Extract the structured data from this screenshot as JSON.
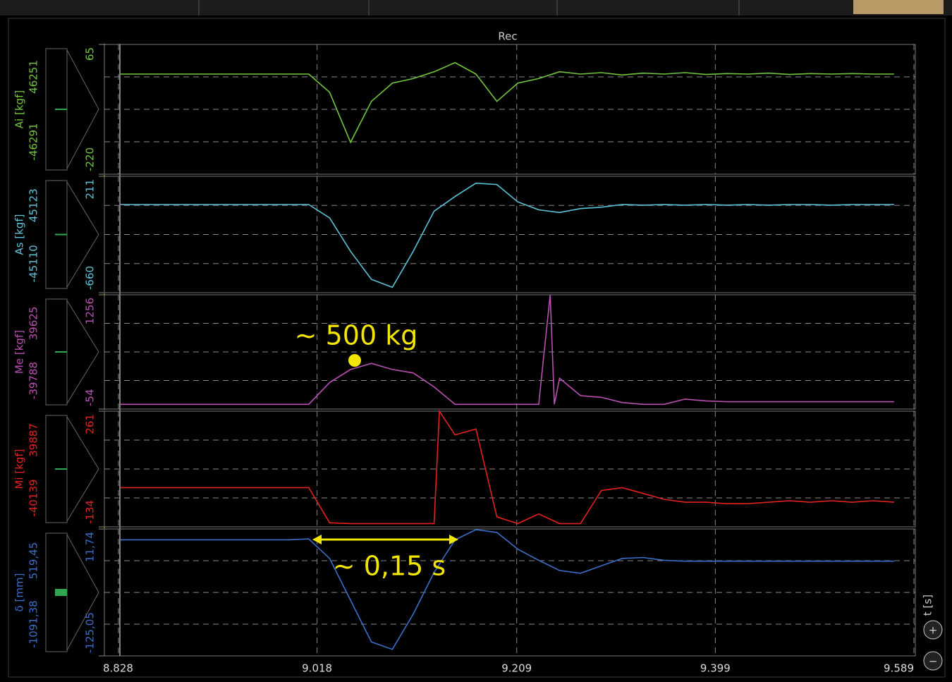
{
  "window": {
    "title": "Rec",
    "axis_label": "t [s]"
  },
  "chart_data": [
    {
      "type": "line",
      "ylabel": "Ai [kgf]",
      "side_labels": {
        "upper": "46251",
        "lower": "-46291"
      },
      "color": "#72c63c",
      "x": [
        8.83,
        8.85,
        8.87,
        8.89,
        8.91,
        8.93,
        8.95,
        8.97,
        8.99,
        9.01,
        9.03,
        9.05,
        9.07,
        9.09,
        9.11,
        9.13,
        9.15,
        9.17,
        9.19,
        9.21,
        9.23,
        9.25,
        9.27,
        9.29,
        9.31,
        9.33,
        9.35,
        9.37,
        9.39,
        9.41,
        9.43,
        9.45,
        9.47,
        9.49,
        9.51,
        9.53,
        9.55,
        9.57
      ],
      "values": [
        0,
        0,
        0,
        0,
        0,
        0,
        0,
        0,
        0,
        0,
        -40,
        -150,
        -60,
        -20,
        -10,
        5,
        25,
        0,
        -60,
        -20,
        -10,
        5,
        0,
        3,
        -2,
        2,
        0,
        3,
        -1,
        1,
        0,
        2,
        -1,
        1,
        0,
        1,
        0,
        0
      ],
      "xlim": [
        8.828,
        9.589
      ],
      "xticks": [
        8.828,
        9.018,
        9.209,
        9.399,
        9.589
      ],
      "ylim": [
        -220,
        65
      ],
      "yticks": [
        -220,
        65
      ]
    },
    {
      "type": "line",
      "ylabel": "As [kgf]",
      "side_labels": {
        "upper": "45123",
        "lower": "-45110"
      },
      "color": "#5cc3d8",
      "x": [
        8.83,
        8.85,
        8.87,
        8.89,
        8.91,
        8.93,
        8.95,
        8.97,
        8.99,
        9.01,
        9.03,
        9.05,
        9.07,
        9.09,
        9.11,
        9.13,
        9.15,
        9.17,
        9.19,
        9.21,
        9.23,
        9.25,
        9.27,
        9.29,
        9.31,
        9.33,
        9.35,
        9.37,
        9.39,
        9.41,
        9.43,
        9.45,
        9.47,
        9.49,
        9.51,
        9.53,
        9.55,
        9.57
      ],
      "values": [
        0,
        0,
        0,
        0,
        0,
        0,
        0,
        0,
        0,
        0,
        -100,
        -350,
        -560,
        -620,
        -350,
        -50,
        60,
        160,
        150,
        20,
        -40,
        -60,
        -30,
        -20,
        0,
        -5,
        0,
        -5,
        0,
        -5,
        0,
        -5,
        0,
        0,
        -5,
        0,
        0,
        0
      ],
      "xlim": [
        8.828,
        9.589
      ],
      "xticks": [
        8.828,
        9.018,
        9.209,
        9.399,
        9.589
      ],
      "ylim": [
        -660,
        211
      ],
      "yticks": [
        -660,
        211
      ]
    },
    {
      "type": "line",
      "ylabel": "Me [kgf]",
      "side_labels": {
        "upper": "39625",
        "lower": "-39788"
      },
      "color": "#b950b2",
      "annotations": [
        {
          "text": "~ 500 kg"
        }
      ],
      "x": [
        8.83,
        8.85,
        8.87,
        8.89,
        8.91,
        8.93,
        8.95,
        8.97,
        8.99,
        9.01,
        9.03,
        9.05,
        9.07,
        9.09,
        9.11,
        9.13,
        9.15,
        9.17,
        9.19,
        9.21,
        9.23,
        9.241,
        9.245,
        9.25,
        9.27,
        9.29,
        9.31,
        9.33,
        9.35,
        9.37,
        9.39,
        9.41,
        9.43,
        9.45,
        9.47,
        9.49,
        9.51,
        9.53,
        9.55,
        9.57
      ],
      "values": [
        0,
        0,
        0,
        0,
        0,
        0,
        0,
        0,
        0,
        0,
        250,
        400,
        470,
        400,
        360,
        200,
        0,
        0,
        0,
        0,
        0,
        1256,
        0,
        300,
        100,
        80,
        20,
        0,
        0,
        60,
        40,
        30,
        30,
        30,
        30,
        30,
        30,
        30,
        30,
        30
      ],
      "xlim": [
        8.828,
        9.589
      ],
      "xticks": [
        8.828,
        9.018,
        9.209,
        9.399,
        9.589
      ],
      "ylim": [
        -54,
        1256
      ],
      "yticks": [
        -54,
        1256
      ]
    },
    {
      "type": "line",
      "ylabel": "Mi [kgf]",
      "side_labels": {
        "upper": "39887",
        "lower": "-40139"
      },
      "color": "#e3221f",
      "x": [
        8.83,
        8.85,
        8.87,
        8.89,
        8.91,
        8.93,
        8.95,
        8.97,
        8.99,
        9.01,
        9.03,
        9.05,
        9.07,
        9.09,
        9.11,
        9.13,
        9.135,
        9.15,
        9.17,
        9.19,
        9.21,
        9.23,
        9.25,
        9.27,
        9.29,
        9.31,
        9.33,
        9.35,
        9.37,
        9.39,
        9.41,
        9.43,
        9.45,
        9.47,
        9.49,
        9.51,
        9.53,
        9.55,
        9.57
      ],
      "values": [
        0,
        0,
        0,
        0,
        0,
        0,
        0,
        0,
        0,
        0,
        -120,
        -123,
        -123,
        -123,
        -123,
        -123,
        261,
        180,
        200,
        -100,
        -123,
        -90,
        -123,
        -123,
        -10,
        0,
        -20,
        -40,
        -50,
        -50,
        -55,
        -55,
        -50,
        -45,
        -50,
        -45,
        -50,
        -45,
        -50
      ],
      "xlim": [
        8.828,
        9.589
      ],
      "xticks": [
        8.828,
        9.018,
        9.209,
        9.399,
        9.589
      ],
      "ylim": [
        -134,
        261
      ],
      "yticks": [
        -134,
        261
      ]
    },
    {
      "type": "line",
      "ylabel": "δ [mm]",
      "side_labels": {
        "upper": "519,45",
        "lower": "-1091,38"
      },
      "color": "#3b6fca",
      "annotations": [
        {
          "text": "~ 0,15 s"
        }
      ],
      "x": [
        8.83,
        8.85,
        8.87,
        8.89,
        8.91,
        8.93,
        8.95,
        8.97,
        8.99,
        9.01,
        9.03,
        9.05,
        9.07,
        9.09,
        9.11,
        9.13,
        9.15,
        9.17,
        9.19,
        9.21,
        9.23,
        9.25,
        9.27,
        9.29,
        9.31,
        9.33,
        9.35,
        9.37,
        9.39,
        9.41,
        9.43,
        9.45,
        9.47,
        9.49,
        9.51,
        9.53,
        9.55,
        9.57
      ],
      "values": [
        0,
        0,
        0,
        0,
        0,
        0,
        0,
        0,
        0,
        1,
        -20,
        -65,
        -110,
        -118,
        -80,
        -35,
        0,
        11,
        8,
        -10,
        -22,
        -33,
        -36,
        -28,
        -20,
        -19,
        -22,
        -23,
        -23,
        -23,
        -23,
        -23,
        -23,
        -23,
        -23,
        -23,
        -23,
        -23
      ],
      "xlim": [
        8.828,
        9.589
      ],
      "xticks": [
        8.828,
        9.018,
        9.209,
        9.399,
        9.589
      ],
      "ylim": [
        -125.05,
        11.74
      ],
      "yticks": [
        {
          "value": -125.05,
          "label": "-125,05"
        },
        {
          "value": 11.74,
          "label": "11,74"
        }
      ]
    }
  ]
}
